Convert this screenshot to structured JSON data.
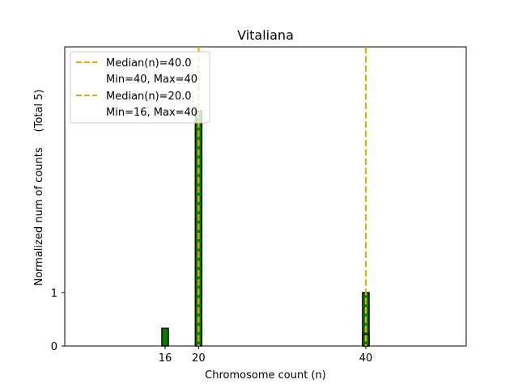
{
  "chart_data": {
    "type": "bar",
    "title": "Vitaliana",
    "xlabel": "Chromosome count (n)",
    "ylabel": "Normalized num of counts",
    "ylabel_secondary": "(Total 5)",
    "xlim": [
      4,
      52
    ],
    "ylim": [
      0,
      5.6
    ],
    "x_ticks": [
      16,
      20,
      40
    ],
    "y_ticks": [
      0,
      1
    ],
    "bar_color": "#008000",
    "bar_edge_color": "#000000",
    "median_color": "#f0a800",
    "series": [
      {
        "name": "Median(n)=40.0",
        "detail": "Min=40, Max=40",
        "median": 40,
        "bars": [
          {
            "x": 40,
            "value": 1
          }
        ]
      },
      {
        "name": "Median(n)=20.0",
        "detail": "Min=16, Max=40",
        "median": 20,
        "bars": [
          {
            "x": 16,
            "value": 0.33
          },
          {
            "x": 20,
            "value": 4.4
          },
          {
            "x": 40,
            "value": 0.22
          }
        ]
      }
    ],
    "legend_position": "top-left"
  }
}
